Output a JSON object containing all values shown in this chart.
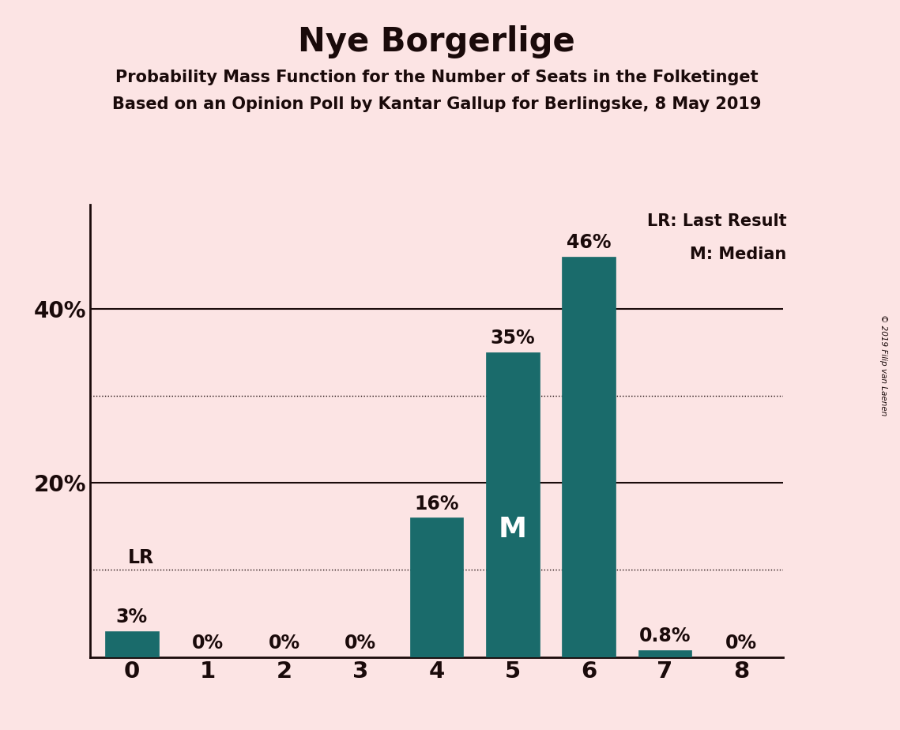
{
  "title": "Nye Borgerlige",
  "subtitle1": "Probability Mass Function for the Number of Seats in the Folketinget",
  "subtitle2": "Based on an Opinion Poll by Kantar Gallup for Berlingske, 8 May 2019",
  "copyright": "© 2019 Filip van Laenen",
  "categories": [
    0,
    1,
    2,
    3,
    4,
    5,
    6,
    7,
    8
  ],
  "values": [
    0.03,
    0.0,
    0.0,
    0.0,
    0.16,
    0.35,
    0.46,
    0.008,
    0.0
  ],
  "labels": [
    "3%",
    "0%",
    "0%",
    "0%",
    "16%",
    "35%",
    "46%",
    "0.8%",
    "0%"
  ],
  "bar_color": "#1a6b6b",
  "background_color": "#fce4e4",
  "text_color": "#1a0a0a",
  "solid_gridlines": [
    0.2,
    0.4
  ],
  "dotted_gridlines": [
    0.1,
    0.3
  ],
  "ylim": [
    0,
    0.52
  ],
  "median_bar": 5,
  "lr_bar": 0,
  "legend_lr": "LR: Last Result",
  "legend_m": "M: Median",
  "bar_width": 0.7
}
